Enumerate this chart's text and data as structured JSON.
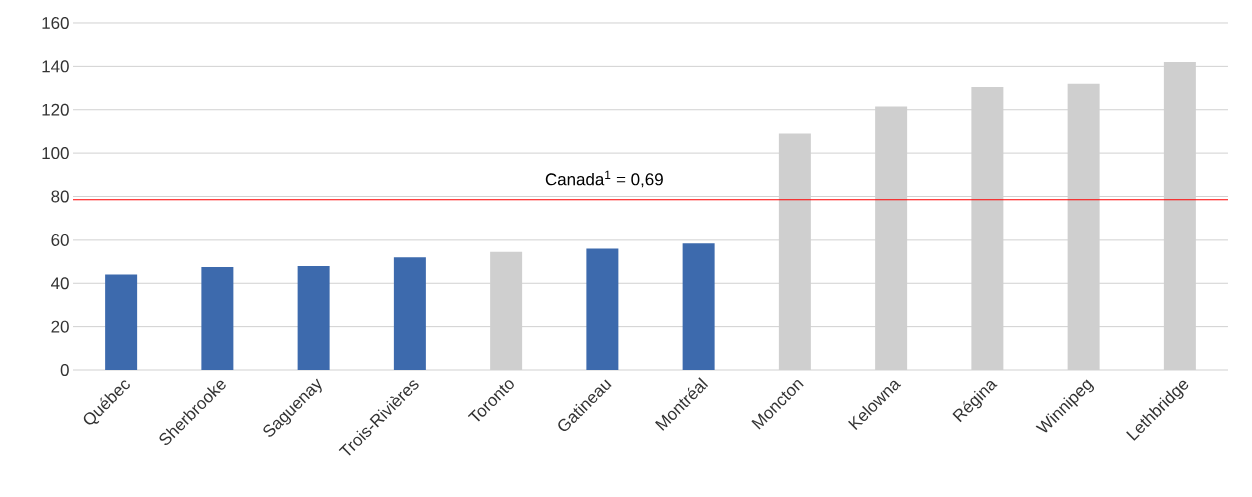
{
  "chart_data": {
    "type": "bar",
    "categories": [
      "Québec",
      "Sherbrooke",
      "Saguenay",
      "Trois-Rivières",
      "Toronto",
      "Gatineau",
      "Montréal",
      "Moncton",
      "Kelowna",
      "Régina",
      "Winnipeg",
      "Lethbridge"
    ],
    "values": [
      44,
      47.5,
      48,
      52,
      54.5,
      56,
      58.5,
      109,
      121.5,
      130.5,
      132,
      142
    ],
    "colors": [
      "#3d6aad",
      "#3d6aad",
      "#3d6aad",
      "#3d6aad",
      "#cfcfcf",
      "#3d6aad",
      "#3d6aad",
      "#cfcfcf",
      "#cfcfcf",
      "#cfcfcf",
      "#cfcfcf",
      "#cfcfcf"
    ],
    "ylim": [
      0,
      160
    ],
    "yticks": [
      0,
      20,
      40,
      60,
      80,
      100,
      120,
      140,
      160
    ],
    "grid": "y",
    "ref_lines": [
      {
        "axis": "y",
        "value": 78.5,
        "color": "#ff0000"
      }
    ],
    "annotations": [
      "Canada$^{1}$ = 0,69"
    ]
  }
}
